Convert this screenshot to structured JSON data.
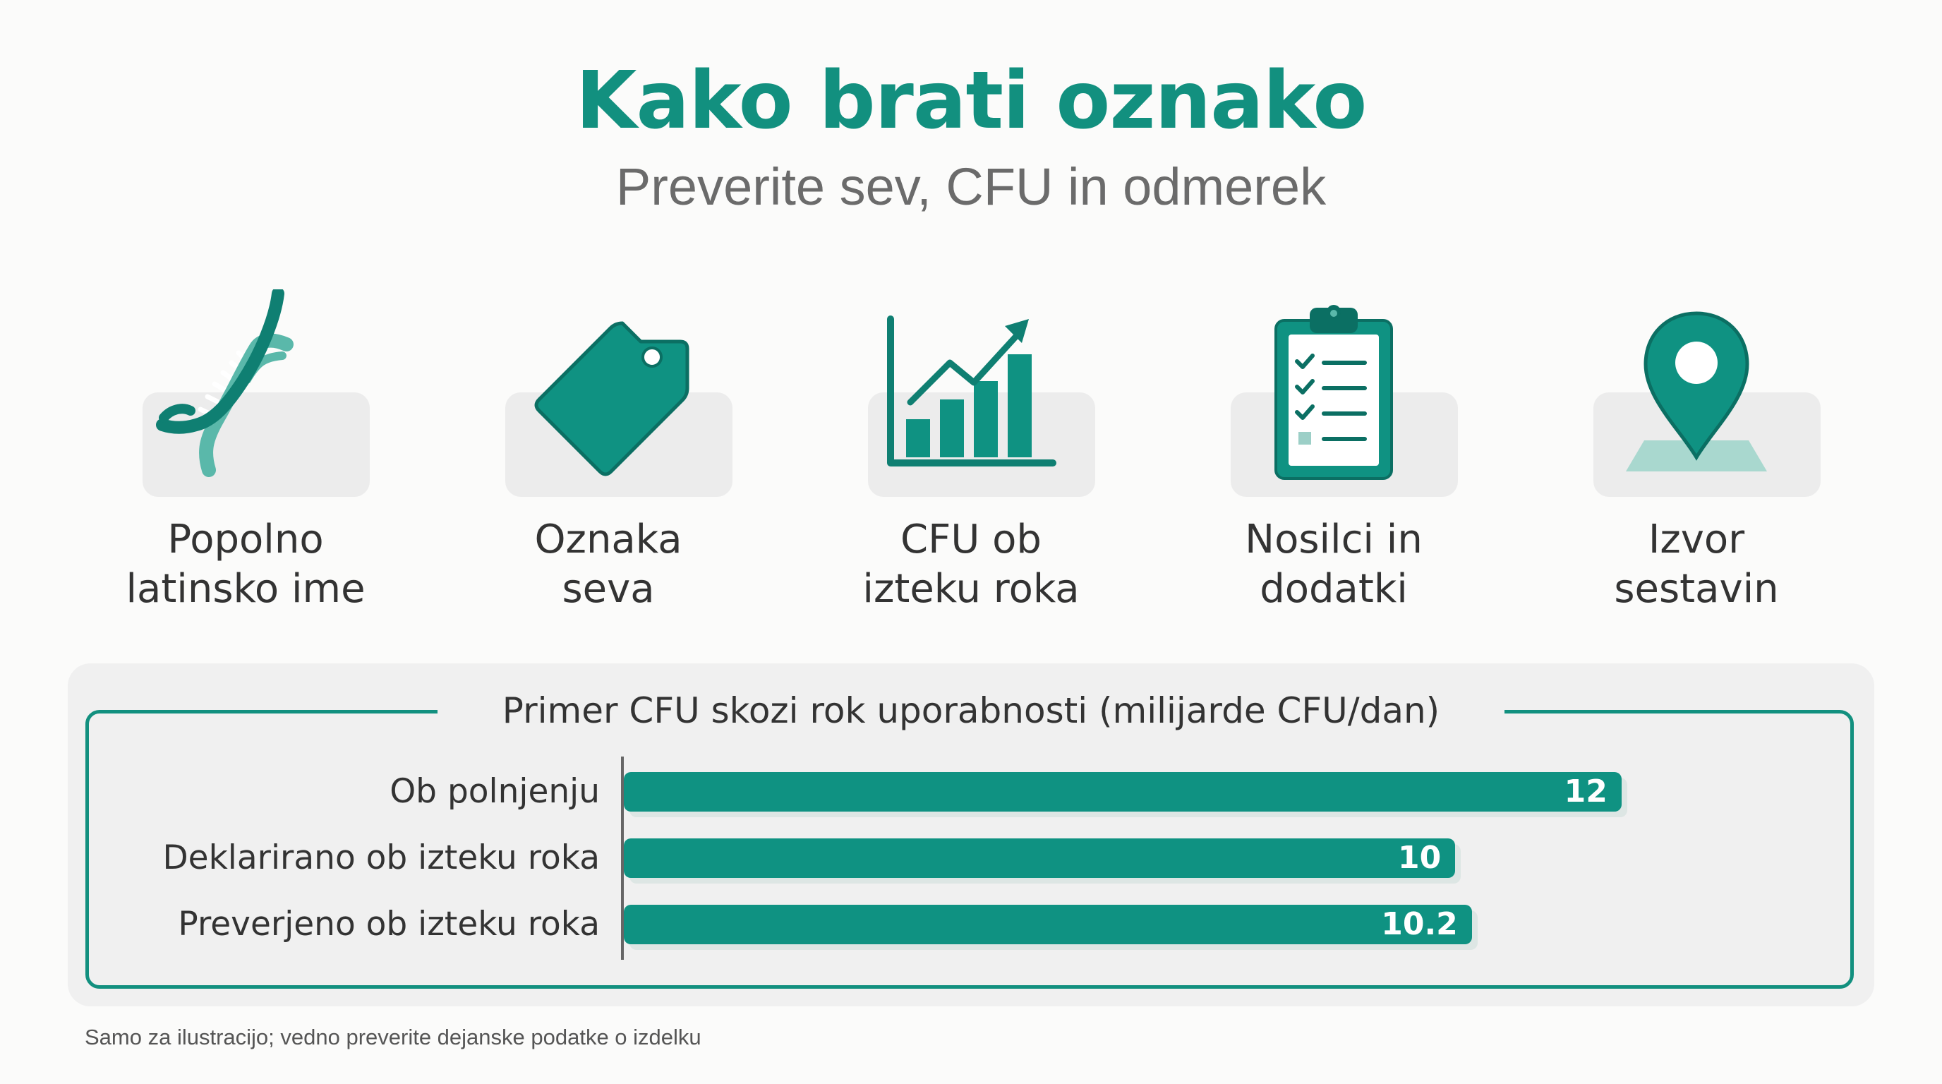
{
  "header": {
    "title": "Kako brati oznako",
    "subtitle": "Preverite sev, CFU in odmerek"
  },
  "features": [
    {
      "label": "Popolno\nlatinsko ime",
      "icon": "dna-icon"
    },
    {
      "label": "Oznaka\nseva",
      "icon": "tag-icon"
    },
    {
      "label": "CFU ob\nizteku roka",
      "icon": "growth-chart-icon"
    },
    {
      "label": "Nosilci in\ndodatki",
      "icon": "clipboard-checklist-icon"
    },
    {
      "label": "Izvor\nsestavin",
      "icon": "map-pin-icon"
    }
  ],
  "colors": {
    "accent": "#12907f",
    "bar": "#0f9282",
    "bar_shadow": "#dde6e4",
    "tile": "#ececec",
    "dna_light": "#5ab8aa"
  },
  "chart_data": {
    "type": "bar",
    "orientation": "horizontal",
    "title": "Primer CFU skozi rok uporabnosti (milijarde CFU/dan)",
    "categories": [
      "Ob polnjenju",
      "Deklarirano ob izteku roka",
      "Preverjeno ob izteku roka"
    ],
    "values": [
      12,
      10,
      10.2
    ],
    "value_labels": [
      "12",
      "10",
      "10.2"
    ],
    "xlim": [
      0,
      12.4
    ],
    "grid": false,
    "legend": "none"
  },
  "footnote": "Samo za ilustracijo; vedno preverite dejanske podatke o izdelku"
}
